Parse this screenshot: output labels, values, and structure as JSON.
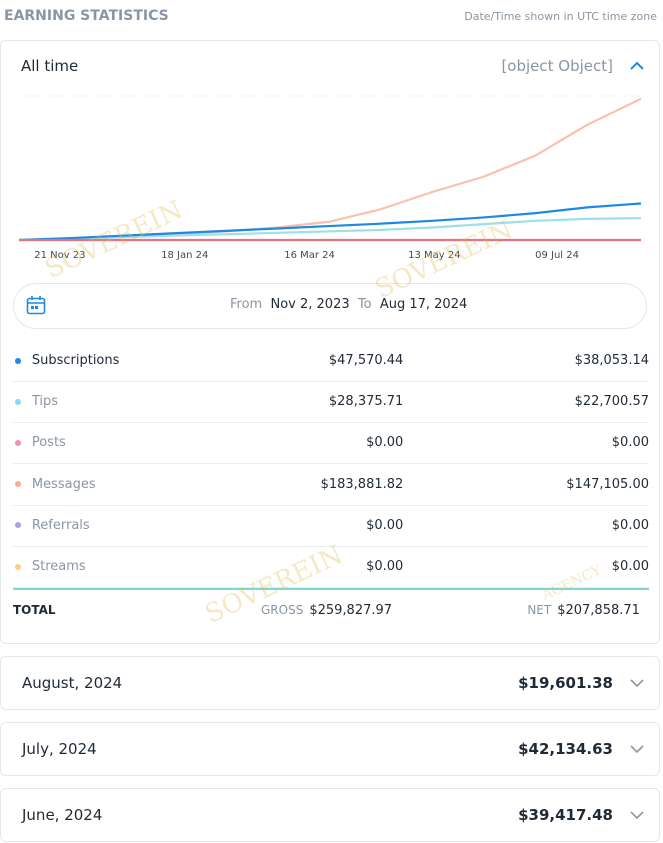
{
  "header": {
    "title": "EARNING STATISTICS",
    "note": "Date/Time shown in UTC time zone"
  },
  "panel": {
    "period": "All time",
    "total": {
      "label": "TOTAL",
      "gross_label": "GROSS",
      "gross": "$259,827.97",
      "net_label": "NET",
      "net": "$207,858.71"
    },
    "chart": {
      "type": "line",
      "x": [
        0,
        24,
        48,
        72,
        96,
        120,
        144,
        168,
        192,
        216,
        240,
        264,
        289
      ],
      "xlim": [
        0,
        289
      ],
      "xticks": [
        {
          "value": 19,
          "label": "21 Nov 23"
        },
        {
          "value": 77,
          "label": "18 Jan 24"
        },
        {
          "value": 135,
          "label": "16 Mar 24"
        },
        {
          "value": 193,
          "label": "13 May 24"
        },
        {
          "value": 250,
          "label": "09 Jul 24"
        }
      ],
      "ylim": [
        0,
        150000
      ],
      "series": [
        {
          "color": "#f9c1ad",
          "values": [
            0,
            1500,
            3500,
            6000,
            9000,
            13000,
            19000,
            32000,
            50000,
            66000,
            88000,
            120000,
            147105
          ]
        },
        {
          "color": "#9de0e8",
          "values": [
            0,
            1500,
            3000,
            4500,
            6000,
            7500,
            9000,
            10500,
            13000,
            16500,
            20000,
            22000,
            22700
          ]
        },
        {
          "color": "#1e88e5",
          "values": [
            0,
            2000,
            4500,
            7000,
            9500,
            12000,
            14500,
            17000,
            20000,
            23500,
            28000,
            34000,
            38053
          ]
        },
        {
          "color": "#e5737f",
          "values": [
            0,
            0,
            0,
            0,
            0,
            0,
            0,
            0,
            0,
            0,
            0,
            0,
            0
          ]
        }
      ]
    },
    "range": {
      "from_label": "From",
      "from": "Nov 2, 2023",
      "to_label": "To",
      "to": "Aug 17, 2024"
    },
    "rows": [
      {
        "name": "Subscriptions",
        "color": "#1e88e5",
        "gross": "$47,570.44",
        "net": "$38,053.14",
        "active": true
      },
      {
        "name": "Tips",
        "color": "#80deea",
        "gross": "$28,375.71",
        "net": "$22,700.57",
        "active": false
      },
      {
        "name": "Posts",
        "color": "#f48fb1",
        "gross": "$0.00",
        "net": "$0.00",
        "active": false
      },
      {
        "name": "Messages",
        "color": "#ffab91",
        "gross": "$183,881.82",
        "net": "$147,105.00",
        "active": false
      },
      {
        "name": "Referrals",
        "color": "#b39ddb",
        "gross": "$0.00",
        "net": "$0.00",
        "active": false
      },
      {
        "name": "Streams",
        "color": "#ffcc80",
        "gross": "$0.00",
        "net": "$0.00",
        "active": false
      }
    ]
  },
  "months": [
    {
      "label": "August, 2024",
      "amount": "$19,601.38"
    },
    {
      "label": "July, 2024",
      "amount": "$42,134.63"
    },
    {
      "label": "June, 2024",
      "amount": "$39,417.48"
    }
  ],
  "watermark": {
    "brand": "SOVEREIN",
    "sub": "AGENCY"
  }
}
